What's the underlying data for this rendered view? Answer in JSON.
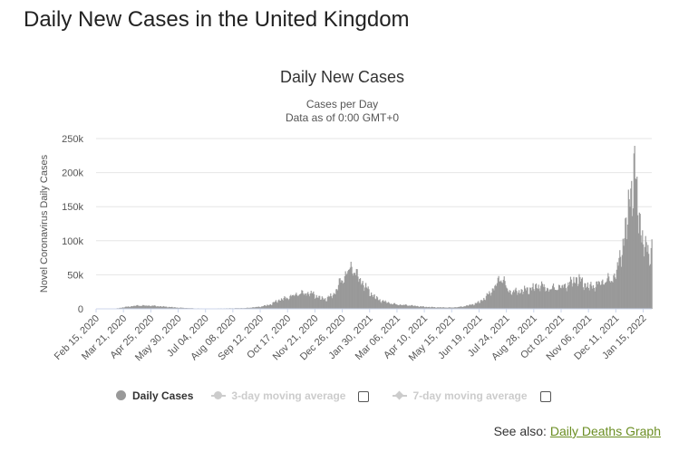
{
  "page": {
    "title": "Daily New Cases in the United Kingdom",
    "see_also_prefix": "See also:",
    "see_also_link": "Daily Deaths Graph"
  },
  "legend": {
    "items": [
      {
        "label": "Daily Cases",
        "enabled": true
      },
      {
        "label": "3-day moving average",
        "enabled": false
      },
      {
        "label": "7-day moving average",
        "enabled": false
      }
    ]
  },
  "chart_data": {
    "type": "bar",
    "title": "Daily New Cases",
    "subtitle": [
      "Cases per Day",
      "Data as of 0:00 GMT+0"
    ],
    "ylabel": "Novel Coronavirus Daily Cases",
    "ylim": [
      0,
      250000
    ],
    "yticks": [
      {
        "value": 0,
        "label": "0"
      },
      {
        "value": 50000,
        "label": "50k"
      },
      {
        "value": 100000,
        "label": "100k"
      },
      {
        "value": 150000,
        "label": "150k"
      },
      {
        "value": 200000,
        "label": "200k"
      },
      {
        "value": 250000,
        "label": "250k"
      }
    ],
    "xticks": [
      "Feb 15, 2020",
      "Mar 21, 2020",
      "Apr 25, 2020",
      "May 30, 2020",
      "Jul 04, 2020",
      "Aug 08, 2020",
      "Sep 12, 2020",
      "Oct 17, 2020",
      "Nov 21, 2020",
      "Dec 26, 2020",
      "Jan 30, 2021",
      "Mar 06, 2021",
      "Apr 10, 2021",
      "May 15, 2021",
      "Jun 19, 2021",
      "Jul 24, 2021",
      "Aug 28, 2021",
      "Oct 02, 2021",
      "Nov 06, 2021",
      "Dec 11, 2021",
      "Jan 15, 2022"
    ],
    "x_start": "2020-02-15",
    "x_end": "2022-01-26",
    "grid": true,
    "bar_color": "#999999",
    "keypoints": [
      [
        "2020-02-15",
        0
      ],
      [
        "2020-03-10",
        300
      ],
      [
        "2020-03-25",
        3000
      ],
      [
        "2020-04-08",
        5000
      ],
      [
        "2020-04-25",
        4800
      ],
      [
        "2020-05-10",
        3500
      ],
      [
        "2020-05-30",
        1800
      ],
      [
        "2020-06-20",
        800
      ],
      [
        "2020-07-10",
        500
      ],
      [
        "2020-08-01",
        800
      ],
      [
        "2020-08-25",
        1300
      ],
      [
        "2020-09-12",
        3200
      ],
      [
        "2020-09-25",
        6500
      ],
      [
        "2020-10-05",
        13000
      ],
      [
        "2020-10-17",
        17000
      ],
      [
        "2020-10-30",
        23000
      ],
      [
        "2020-11-10",
        24000
      ],
      [
        "2020-11-18",
        23000
      ],
      [
        "2020-11-28",
        16000
      ],
      [
        "2020-12-05",
        15000
      ],
      [
        "2020-12-15",
        22000
      ],
      [
        "2020-12-22",
        38000
      ],
      [
        "2020-12-29",
        50000
      ],
      [
        "2021-01-04",
        60000
      ],
      [
        "2021-01-08",
        64000
      ],
      [
        "2021-01-15",
        48000
      ],
      [
        "2021-01-22",
        38000
      ],
      [
        "2021-01-30",
        25000
      ],
      [
        "2021-02-10",
        14000
      ],
      [
        "2021-02-25",
        8500
      ],
      [
        "2021-03-06",
        6500
      ],
      [
        "2021-03-20",
        5500
      ],
      [
        "2021-04-10",
        3000
      ],
      [
        "2021-04-25",
        2300
      ],
      [
        "2021-05-15",
        2000
      ],
      [
        "2021-05-28",
        3200
      ],
      [
        "2021-06-10",
        6500
      ],
      [
        "2021-06-19",
        10000
      ],
      [
        "2021-06-28",
        18000
      ],
      [
        "2021-07-08",
        32000
      ],
      [
        "2021-07-17",
        48000
      ],
      [
        "2021-07-20",
        45000
      ],
      [
        "2021-07-26",
        27000
      ],
      [
        "2021-08-05",
        26000
      ],
      [
        "2021-08-15",
        28000
      ],
      [
        "2021-08-28",
        32000
      ],
      [
        "2021-09-05",
        36000
      ],
      [
        "2021-09-15",
        30000
      ],
      [
        "2021-09-25",
        32000
      ],
      [
        "2021-10-05",
        34000
      ],
      [
        "2021-10-15",
        40000
      ],
      [
        "2021-10-21",
        46000
      ],
      [
        "2021-10-30",
        40000
      ],
      [
        "2021-11-06",
        33000
      ],
      [
        "2021-11-15",
        36000
      ],
      [
        "2021-11-25",
        42000
      ],
      [
        "2021-12-05",
        45000
      ],
      [
        "2021-12-11",
        52000
      ],
      [
        "2021-12-15",
        72000
      ],
      [
        "2021-12-20",
        100000
      ],
      [
        "2021-12-25",
        125000
      ],
      [
        "2021-12-29",
        180000
      ],
      [
        "2022-01-01",
        185000
      ],
      [
        "2022-01-04",
        215000
      ],
      [
        "2022-01-07",
        165000
      ],
      [
        "2022-01-10",
        145000
      ],
      [
        "2022-01-13",
        115000
      ],
      [
        "2022-01-17",
        88000
      ],
      [
        "2022-01-21",
        95000
      ],
      [
        "2022-01-24",
        80000
      ],
      [
        "2022-01-26",
        95000
      ]
    ]
  }
}
